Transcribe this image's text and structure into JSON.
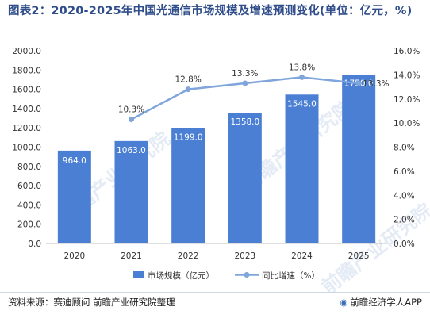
{
  "title": "图表2：2020-2025年中国光通信市场规模及增速预测变化(单位：亿元，%)",
  "source": "资料来源：赛迪顾问 前瞻产业研究院整理",
  "brand": "前瞻经济学人APP",
  "watermark": "前瞻产业研究院",
  "colors": {
    "bar": "#4a7fd3",
    "line": "#7fa5db",
    "axis_text": "#333333",
    "title": "#2f4d8a"
  },
  "chart_data": {
    "type": "bar",
    "categories": [
      "2020",
      "2021",
      "2022",
      "2023",
      "2024",
      "2025"
    ],
    "series": [
      {
        "name": "市场规模（亿元）",
        "type": "bar",
        "axis": "left",
        "values": [
          964.0,
          1063.0,
          1199.0,
          1358.0,
          1545.0,
          1750.0
        ],
        "labels": [
          "964.0",
          "1063.0",
          "1199.0",
          "1358.0",
          "1545.0",
          "1750.0"
        ]
      },
      {
        "name": "同比增速（%）",
        "type": "line",
        "axis": "right",
        "x": [
          "2021",
          "2022",
          "2023",
          "2024",
          "2025"
        ],
        "values": [
          10.3,
          12.8,
          13.3,
          13.8,
          13.3
        ],
        "labels": [
          "10.3%",
          "12.8%",
          "13.3%",
          "13.8%",
          "13.3%"
        ]
      }
    ],
    "ylim_left": [
      0,
      2000
    ],
    "ylim_right": [
      0,
      16
    ],
    "yticks_left": [
      "0.0",
      "200.0",
      "400.0",
      "600.0",
      "800.0",
      "1000.0",
      "1200.0",
      "1400.0",
      "1600.0",
      "1800.0",
      "2000.0"
    ],
    "yticks_right": [
      "0.0%",
      "2.0%",
      "4.0%",
      "6.0%",
      "8.0%",
      "10.0%",
      "12.0%",
      "14.0%",
      "16.0%"
    ],
    "legend_position": "bottom-center",
    "grid": false
  }
}
